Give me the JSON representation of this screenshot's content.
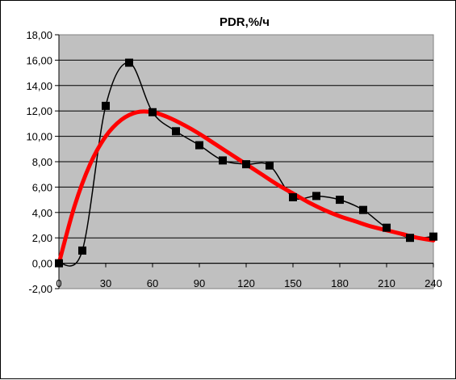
{
  "chart_data": {
    "type": "line",
    "title": "PDR,%/ч",
    "xlabel": "",
    "ylabel": "",
    "xlim": [
      0,
      240
    ],
    "ylim": [
      -2,
      18
    ],
    "x_ticks": [
      "0",
      "30",
      "60",
      "90",
      "120",
      "150",
      "180",
      "210",
      "240"
    ],
    "y_ticks": [
      "-2,00",
      "0,00",
      "2,00",
      "4,00",
      "6,00",
      "8,00",
      "10,00",
      "12,00",
      "14,00",
      "16,00",
      "18,00"
    ],
    "grid": true,
    "legend": "none",
    "plot_background": "#c0c0c0",
    "series": [
      {
        "kind": "observed",
        "color": "#000000",
        "marker": "square",
        "smooth": true,
        "x": [
          0,
          15,
          30,
          45,
          60,
          75,
          90,
          105,
          120,
          135,
          150,
          165,
          180,
          195,
          210,
          225,
          240
        ],
        "y": [
          0.0,
          1.0,
          12.4,
          15.8,
          11.9,
          10.4,
          9.3,
          8.1,
          7.8,
          7.7,
          5.2,
          5.3,
          5.0,
          4.2,
          2.8,
          2.0,
          2.1
        ]
      },
      {
        "kind": "fitted",
        "color": "#ff0000",
        "marker": "none",
        "smooth": true,
        "x": [
          0,
          10,
          20,
          30,
          40,
          50,
          60,
          70,
          80,
          90,
          100,
          110,
          120,
          130,
          140,
          150,
          160,
          170,
          180,
          190,
          200,
          210,
          220,
          230,
          240
        ],
        "y": [
          0.0,
          4.5,
          7.8,
          10.0,
          11.3,
          11.9,
          11.9,
          11.5,
          10.9,
          10.2,
          9.4,
          8.6,
          7.8,
          7.0,
          6.2,
          5.5,
          4.8,
          4.2,
          3.7,
          3.3,
          2.9,
          2.6,
          2.3,
          2.0,
          1.8
        ]
      }
    ]
  }
}
